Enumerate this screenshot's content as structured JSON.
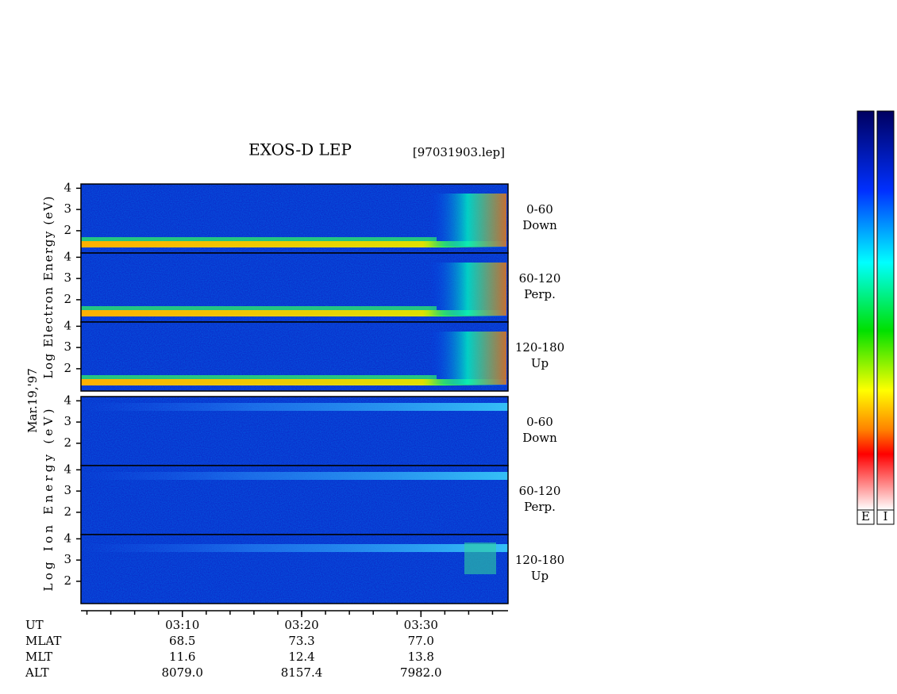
{
  "chart_data": {
    "type": "spectrogram",
    "title": "EXOS-D LEP",
    "file": "[97031903.lep]",
    "date_label": "Mar.19,'97",
    "groups": [
      {
        "ylabel": "Log Electron Energy (eV)",
        "kind": "electron",
        "panels": [
          {
            "label": [
              "0-60",
              "Down"
            ]
          },
          {
            "label": [
              "60-120",
              "Perp."
            ]
          },
          {
            "label": [
              "120-180",
              "Up"
            ]
          }
        ]
      },
      {
        "ylabel": "Log Ion Energy (eV)",
        "kind": "ion",
        "panels": [
          {
            "label": [
              "0-60",
              "Down"
            ]
          },
          {
            "label": [
              "60-120",
              "Perp."
            ]
          },
          {
            "label": [
              "120-180",
              "Up"
            ]
          }
        ]
      }
    ],
    "ylim": [
      0.95,
      4.2
    ],
    "yticks": [
      2,
      3,
      4
    ],
    "xlim": [
      181.5,
      217.3
    ],
    "xticks": [
      {
        "value": 190,
        "label": "03:10"
      },
      {
        "value": 200,
        "label": "03:20"
      },
      {
        "value": 210,
        "label": "03:30"
      }
    ],
    "minor_xticks": [
      182,
      184,
      186,
      188,
      190,
      192,
      194,
      196,
      198,
      200,
      202,
      204,
      206,
      208,
      210,
      212,
      214,
      216
    ],
    "rows": [
      {
        "name": "UT"
      },
      {
        "name": "MLAT",
        "values": [
          "68.5",
          "73.3",
          "77.0"
        ]
      },
      {
        "name": "MLT",
        "values": [
          "11.6",
          "12.4",
          "13.8"
        ]
      },
      {
        "name": "ALT",
        "values": [
          "8079.0",
          "8157.4",
          "7982.0"
        ]
      }
    ],
    "colorbars": [
      "E",
      "I"
    ]
  }
}
